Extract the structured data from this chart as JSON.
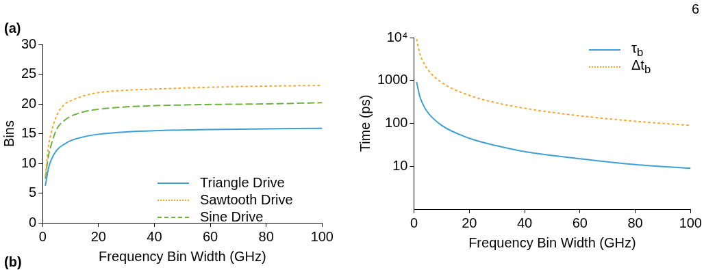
{
  "chart_data": [
    {
      "type": "line",
      "xlabel": "Frequency Bin Width (GHz)",
      "ylabel": "Bins",
      "annotations": [
        "(a)",
        "(b)"
      ],
      "xlim": [
        0,
        100
      ],
      "ylim": [
        0,
        30
      ],
      "xticks": [
        0,
        20,
        40,
        60,
        80,
        100
      ],
      "yticks": [
        0,
        5,
        10,
        15,
        20,
        25,
        30
      ],
      "grid": false,
      "legend": "bottom right",
      "marker": "none",
      "x": [
        1,
        2,
        3,
        5,
        8,
        10,
        15,
        20,
        30,
        40,
        60,
        80,
        100
      ],
      "series": [
        {
          "name": "Triangle Drive",
          "color": "#3d9fd6",
          "line_style": "solid",
          "values": [
            6.3,
            9,
            10.5,
            12.2,
            13.3,
            13.8,
            14.5,
            14.9,
            15.3,
            15.5,
            15.7,
            15.8,
            15.9
          ]
        },
        {
          "name": "Sawtooth Drive",
          "color": "#f5a623",
          "line_style": "dotted",
          "values": [
            8,
            12.5,
            15,
            18,
            20,
            20.5,
            21.4,
            21.9,
            22.3,
            22.5,
            22.8,
            23,
            23.1
          ]
        },
        {
          "name": "Sine Drive",
          "color": "#6ab23c",
          "line_style": "dashed",
          "values": [
            7.5,
            11,
            13,
            15.7,
            17.3,
            17.9,
            18.7,
            19.1,
            19.5,
            19.7,
            19.9,
            20,
            20.2
          ]
        }
      ]
    },
    {
      "type": "line",
      "xlabel": "Frequency Bin Width (GHz)",
      "ylabel": "Time (ps)",
      "annotations": [
        "6"
      ],
      "log": "y",
      "xlim": [
        0,
        100
      ],
      "ylim": [
        1,
        10000
      ],
      "xticks": [
        0,
        20,
        40,
        60,
        80,
        100
      ],
      "yticks": [
        10,
        100,
        1000,
        {
          "value": 10000,
          "label": "10⁴"
        }
      ],
      "grid": false,
      "legend": "top right",
      "marker": "none",
      "x": [
        1,
        2,
        3,
        5,
        10,
        20,
        30,
        40,
        60,
        80,
        100
      ],
      "series": [
        {
          "name": "τ$_{b}$",
          "color": "#3d9fd6",
          "line_style": "solid",
          "values": [
            900,
            450,
            300,
            180,
            90,
            45,
            30,
            22,
            15,
            11,
            9
          ]
        },
        {
          "name": "Δt$_{b}$",
          "color": "#f5a623",
          "line_style": "dotted",
          "values": [
            9000,
            4500,
            3000,
            1800,
            900,
            450,
            300,
            225,
            150,
            112,
            90
          ]
        }
      ]
    }
  ]
}
